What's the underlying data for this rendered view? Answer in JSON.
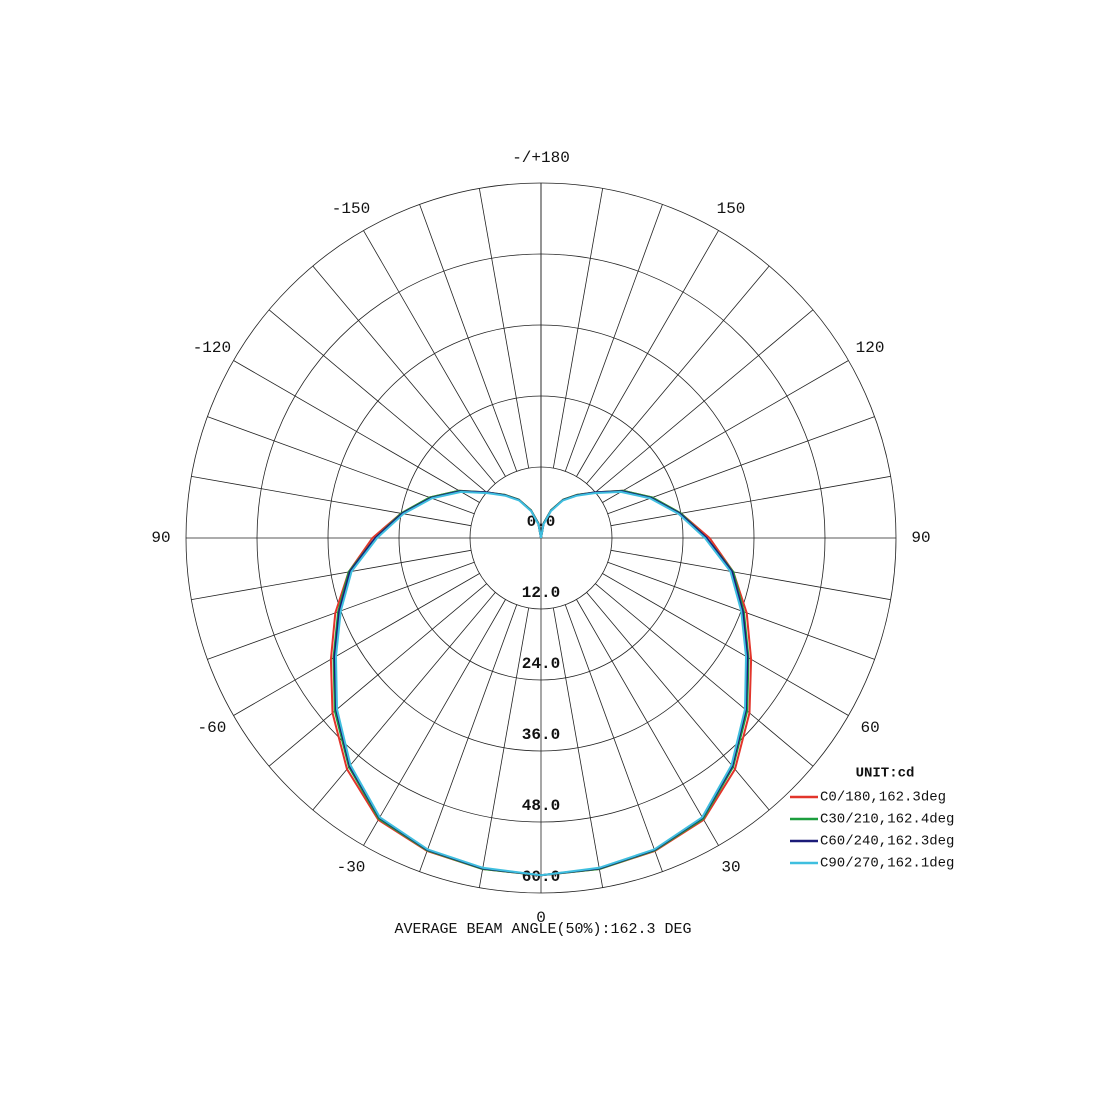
{
  "chart_data": {
    "type": "polar",
    "title": "AVERAGE BEAM ANGLE(50%):162.3 DEG",
    "unit_label": "UNIT:cd",
    "x": [
      -180,
      -170,
      -160,
      -150,
      -140,
      -130,
      -120,
      -110,
      -100,
      -90,
      -80,
      -70,
      -60,
      -50,
      -40,
      -30,
      -20,
      -10,
      0,
      10,
      20,
      30,
      40,
      50,
      60,
      70,
      80,
      90,
      100,
      110,
      120,
      130,
      140,
      150,
      160,
      170,
      180
    ],
    "series": [
      {
        "name": "C0/180,162.3deg",
        "color": "#e2352b",
        "values": [
          0,
          2.5,
          5,
          7.5,
          9.5,
          12,
          16,
          20,
          24,
          28.5,
          33,
          37,
          41,
          46,
          51,
          55,
          56.3,
          56.8,
          57,
          56.8,
          56.3,
          55,
          51,
          46,
          41,
          37,
          33,
          28.5,
          24,
          20,
          16,
          12,
          9.5,
          7.5,
          5,
          2.5,
          0
        ]
      },
      {
        "name": "C30/210,162.4deg",
        "color": "#1c9e3e",
        "values": [
          0,
          2.5,
          5,
          7.5,
          9.5,
          12,
          16,
          20,
          24,
          28,
          33,
          36.5,
          40.5,
          45.5,
          50.5,
          54.8,
          56.2,
          56.8,
          57,
          56.8,
          56.2,
          54.8,
          50.5,
          45.5,
          40.5,
          36.5,
          33,
          28,
          24,
          20,
          16,
          12,
          9.5,
          7.5,
          5,
          2.5,
          0
        ]
      },
      {
        "name": "C60/240,162.3deg",
        "color": "#1b1b78",
        "values": [
          0,
          2.4,
          4.9,
          7.4,
          9.4,
          12,
          15.8,
          19.8,
          23.8,
          28,
          32.8,
          36.3,
          40.3,
          45.2,
          50.3,
          54.6,
          56.1,
          56.7,
          57,
          56.7,
          56.1,
          54.6,
          50.3,
          45.2,
          40.3,
          36.3,
          32.8,
          28,
          23.8,
          19.8,
          15.8,
          12,
          9.4,
          7.4,
          4.9,
          2.4,
          0
        ]
      },
      {
        "name": "C90/270,162.1deg",
        "color": "#3fbfdf",
        "values": [
          0,
          2.3,
          4.8,
          7.3,
          9.3,
          11.8,
          15.6,
          19.6,
          23.6,
          27.7,
          32.5,
          36,
          40,
          45,
          50.1,
          54.5,
          56,
          56.6,
          57,
          56.6,
          56,
          54.5,
          50.1,
          45,
          40,
          36,
          32.5,
          27.7,
          23.6,
          19.6,
          15.6,
          11.8,
          9.3,
          7.3,
          4.8,
          2.3,
          0
        ]
      }
    ],
    "rlim": [
      0,
      60
    ],
    "rticks": [
      {
        "value": 0,
        "label": "0.0"
      },
      {
        "value": 12,
        "label": "12.0"
      },
      {
        "value": 24,
        "label": "24.0"
      },
      {
        "value": 36,
        "label": "36.0"
      },
      {
        "value": 48,
        "label": "48.0"
      },
      {
        "value": 60,
        "label": "60.0"
      }
    ],
    "thetaticks": [
      0,
      30,
      60,
      90,
      120,
      150,
      {
        "value": 180,
        "label": "-/+180"
      },
      -150,
      -120,
      {
        "value": -90,
        "label": "90"
      },
      -60,
      -30
    ]
  }
}
